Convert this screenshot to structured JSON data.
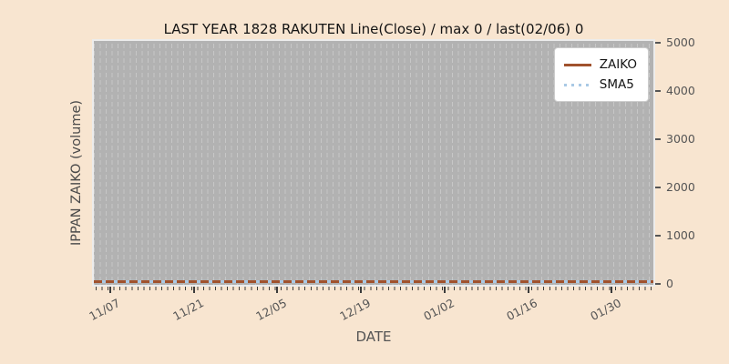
{
  "title": "LAST YEAR 1828 RAKUTEN Line(Close) / max 0 / last(02/06) 0",
  "axes": {
    "x_label": "DATE",
    "y_label": "IPPAN ZAIKO (volume)",
    "x_ticks": [
      "11/07",
      "11/21",
      "12/05",
      "12/19",
      "01/02",
      "01/16",
      "01/30"
    ],
    "y_ticks": [
      "0",
      "1000",
      "2000",
      "3000",
      "4000",
      "5000"
    ]
  },
  "legend": {
    "position": "upper right",
    "items": [
      {
        "label": "ZAIKO",
        "color": "#a0522d",
        "style": "solid"
      },
      {
        "label": "SMA5",
        "color": "#a9c9e5",
        "style": "dotted"
      }
    ]
  },
  "colors": {
    "figure_background": "#f8e5d0",
    "plot_background": "#b2b2b2",
    "gridline": "#c7c7c7",
    "tick_text": "#555555",
    "zaiko_line": "#a0522d",
    "sma5_line": "#a9c9e5"
  },
  "chart_data": {
    "type": "line",
    "title": "LAST YEAR 1828 RAKUTEN Line(Close) / max 0 / last(02/06) 0",
    "xlabel": "DATE",
    "ylabel": "IPPAN ZAIKO (volume)",
    "x_tick_labels": [
      "11/07",
      "11/21",
      "12/05",
      "12/19",
      "01/02",
      "01/16",
      "01/30"
    ],
    "series": [
      {
        "name": "ZAIKO",
        "style": "solid",
        "color": "#a0522d",
        "values": [
          0,
          0,
          0,
          0,
          0,
          0,
          0
        ]
      },
      {
        "name": "SMA5",
        "style": "dotted",
        "color": "#a9c9e5",
        "values": [
          0,
          0,
          0,
          0,
          0,
          0,
          0
        ]
      }
    ],
    "max_value": 0,
    "last_point": {
      "date": "02/06",
      "value": 0
    },
    "ylim": [
      0,
      5000
    ],
    "grid": "vertical dashed daily gridlines",
    "legend_position": "upper right"
  }
}
